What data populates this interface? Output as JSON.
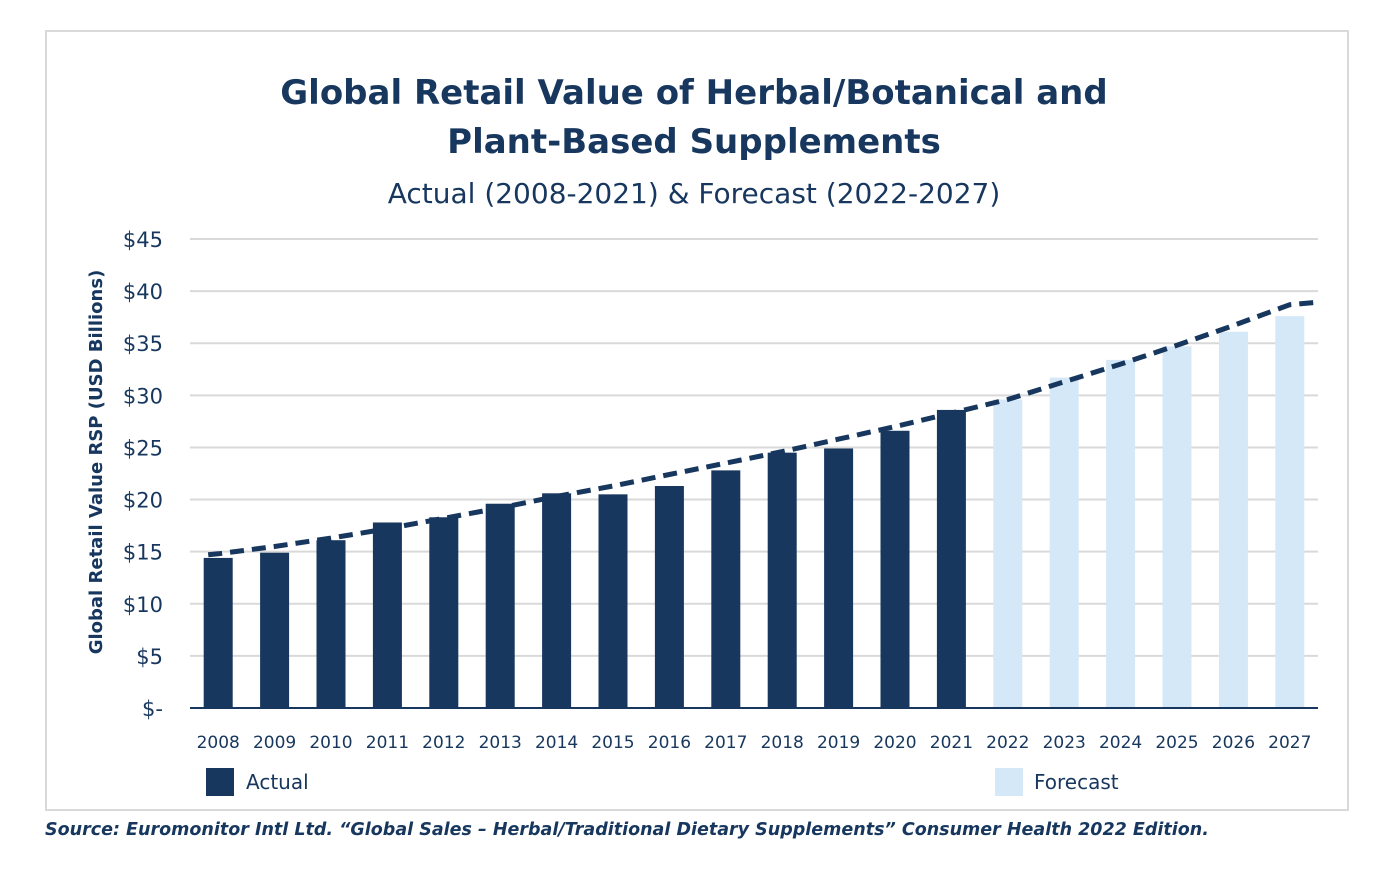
{
  "chart_data": {
    "type": "bar",
    "title_lines": [
      "Global Retail Value of Herbal/Botanical and",
      "Plant-Based Supplements"
    ],
    "subtitle": "Actual (2008-2021) & Forecast (2022-2027)",
    "ylabel": "Global Retail Value RSP (USD Billions)",
    "xlabel": "",
    "ylim": [
      0,
      45
    ],
    "yticks": [
      0,
      5,
      10,
      15,
      20,
      25,
      30,
      35,
      40,
      45
    ],
    "ytick_labels": [
      "$-",
      "$5",
      "$10",
      "$15",
      "$20",
      "$25",
      "$30",
      "$35",
      "$40",
      "$45"
    ],
    "categories": [
      "2008",
      "2009",
      "2010",
      "2011",
      "2012",
      "2013",
      "2014",
      "2015",
      "2016",
      "2017",
      "2018",
      "2019",
      "2020",
      "2021",
      "2022",
      "2023",
      "2024",
      "2025",
      "2026",
      "2027"
    ],
    "series": [
      {
        "name": "Actual",
        "color": "#17375e",
        "values": [
          14.4,
          14.9,
          16.1,
          17.8,
          18.3,
          19.6,
          20.6,
          20.5,
          21.3,
          22.8,
          24.5,
          24.9,
          26.6,
          28.6,
          null,
          null,
          null,
          null,
          null,
          null
        ]
      },
      {
        "name": "Forecast",
        "color": "#d4e8f8",
        "values": [
          null,
          null,
          null,
          null,
          null,
          null,
          null,
          null,
          null,
          null,
          null,
          null,
          null,
          null,
          29.6,
          31.7,
          33.4,
          34.7,
          36.1,
          37.6
        ]
      }
    ],
    "trendline": {
      "style": "dashed",
      "color": "#17375e",
      "values": [
        14.8,
        15.5,
        16.3,
        17.2,
        18.2,
        19.2,
        20.3,
        21.3,
        22.4,
        23.5,
        24.6,
        25.8,
        27.0,
        28.3,
        29.6,
        31.3,
        33.0,
        34.8,
        36.7,
        38.7
      ]
    },
    "legend": {
      "placement": "bottom",
      "entries": [
        "Actual",
        "Forecast"
      ]
    },
    "grid": true
  },
  "source": "Source: Euromonitor Intl Ltd. “Global Sales – Herbal/Traditional Dietary Supplements” Consumer Health 2022 Edition."
}
